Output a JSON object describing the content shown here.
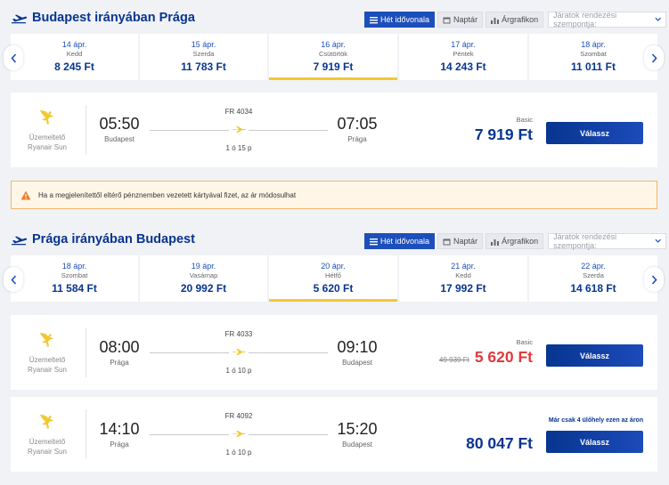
{
  "outbound": {
    "title": "Budapest irányában Prága",
    "view_buttons": [
      {
        "label": "Hét idővonala",
        "icon": "timeline-icon",
        "active": true
      },
      {
        "label": "Naptár",
        "icon": "calendar-icon",
        "active": false
      },
      {
        "label": "Árgrafikon",
        "icon": "bar-chart-icon",
        "active": false
      }
    ],
    "sort_placeholder": "Járatok rendezési szempontja:",
    "dates": [
      {
        "date": "14 ápr.",
        "weekday": "Kedd",
        "price": "8 245 Ft",
        "selected": false
      },
      {
        "date": "15 ápr.",
        "weekday": "Szerda",
        "price": "11 783 Ft",
        "selected": false
      },
      {
        "date": "16 ápr.",
        "weekday": "Csütörtök",
        "price": "7 919 Ft",
        "selected": true
      },
      {
        "date": "17 ápr.",
        "weekday": "Péntek",
        "price": "14 243 Ft",
        "selected": false
      },
      {
        "date": "18 ápr.",
        "weekday": "Szombat",
        "price": "11 011 Ft",
        "selected": false
      }
    ],
    "flights": [
      {
        "operator_label": "Üzemeltető",
        "operator_name": "Ryanair Sun",
        "flight_number": "FR 4034",
        "dep_time": "05:50",
        "dep_city": "Budapest",
        "arr_time": "07:05",
        "arr_city": "Prága",
        "duration": "1 ó 15 p",
        "fare_type": "Basic",
        "old_price": "",
        "price": "7 919 Ft",
        "sale": false,
        "seats_note": "",
        "button": "Válassz"
      }
    ]
  },
  "notice": {
    "text": "Ha a megjelenítettől eltérő pénznemben vezetett kártyával fizet, az ár módosulhat",
    "icon": "warning-icon",
    "color": "#f3b66b"
  },
  "inbound": {
    "title": "Prága irányában Budapest",
    "view_buttons": [
      {
        "label": "Hét idővonala",
        "icon": "timeline-icon",
        "active": true
      },
      {
        "label": "Naptár",
        "icon": "calendar-icon",
        "active": false
      },
      {
        "label": "Árgrafikon",
        "icon": "bar-chart-icon",
        "active": false
      }
    ],
    "sort_placeholder": "Járatok rendezési szempontja:",
    "dates": [
      {
        "date": "18 ápr.",
        "weekday": "Szombat",
        "price": "11 584 Ft",
        "selected": false
      },
      {
        "date": "19 ápr.",
        "weekday": "Vasárnap",
        "price": "20 992 Ft",
        "selected": false
      },
      {
        "date": "20 ápr.",
        "weekday": "Hétfő",
        "price": "5 620 Ft",
        "selected": true
      },
      {
        "date": "21 ápr.",
        "weekday": "Kedd",
        "price": "17 992 Ft",
        "selected": false
      },
      {
        "date": "22 ápr.",
        "weekday": "Szerda",
        "price": "14 618 Ft",
        "selected": false
      }
    ],
    "flights": [
      {
        "operator_label": "Üzemeltető",
        "operator_name": "Ryanair Sun",
        "flight_number": "FR 4033",
        "dep_time": "08:00",
        "dep_city": "Prága",
        "arr_time": "09:10",
        "arr_city": "Budapest",
        "duration": "1 ó 10 p",
        "fare_type": "Basic",
        "old_price": "49 939 Ft",
        "price": "5 620 Ft",
        "sale": true,
        "seats_note": "",
        "button": "Válassz"
      },
      {
        "operator_label": "Üzemeltető",
        "operator_name": "Ryanair Sun",
        "flight_number": "FR 4092",
        "dep_time": "14:10",
        "dep_city": "Prága",
        "arr_time": "15:20",
        "arr_city": "Budapest",
        "duration": "1 ó 10 p",
        "fare_type": "",
        "old_price": "",
        "price": "80 047 Ft",
        "sale": false,
        "seats_note": "Már csak 4 ülőhely ezen az áron",
        "button": "Válassz"
      }
    ]
  },
  "colors": {
    "brand_blue": "#073590",
    "accent_blue": "#1d4fbb",
    "sale_red": "#e03a3e",
    "selected_underline": "#f1c933",
    "logo_yellow": "#f1c933"
  }
}
